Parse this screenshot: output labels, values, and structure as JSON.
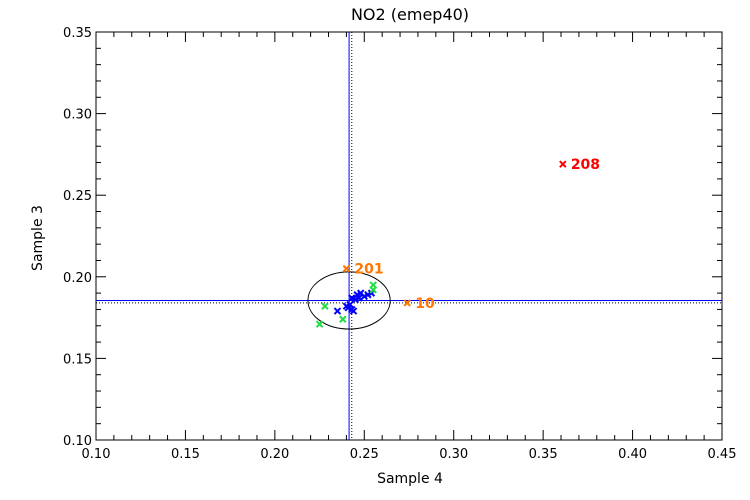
{
  "chart_data": {
    "type": "scatter",
    "title": "NO2 (emep40)",
    "xlabel": "Sample 4",
    "ylabel": "Sample 3",
    "xlim": [
      0.1,
      0.45
    ],
    "ylim": [
      0.1,
      0.35
    ],
    "x_ticks": [
      "0.10",
      "0.15",
      "0.20",
      "0.25",
      "0.30",
      "0.35",
      "0.40",
      "0.45"
    ],
    "y_ticks": [
      "0.10",
      "0.15",
      "0.20",
      "0.25",
      "0.30",
      "0.35"
    ],
    "grid": false,
    "colors": {
      "blue": "#0000ff",
      "green": "#22dd44",
      "orange": "#ff7700",
      "red": "#ff0000",
      "black": "#000000"
    },
    "reference_lines": {
      "vertical_solid_x": 0.2415,
      "vertical_dotted_x": 0.243,
      "horizontal_solid_y": 0.1855,
      "horizontal_dotted_y": 0.184
    },
    "ellipse": {
      "center": [
        0.2415,
        0.1855
      ],
      "radius_x": 0.023,
      "radius_y": 0.0175
    },
    "series": [
      {
        "color": "blue",
        "marker": "x",
        "points": [
          [
            0.243,
            0.187
          ],
          [
            0.246,
            0.189
          ],
          [
            0.248,
            0.19
          ],
          [
            0.25,
            0.188
          ],
          [
            0.245,
            0.186
          ],
          [
            0.242,
            0.183
          ],
          [
            0.24,
            0.182
          ],
          [
            0.241,
            0.181
          ],
          [
            0.243,
            0.18
          ],
          [
            0.244,
            0.179
          ],
          [
            0.235,
            0.179
          ],
          [
            0.252,
            0.189
          ],
          [
            0.254,
            0.19
          ],
          [
            0.247,
            0.187
          ]
        ]
      },
      {
        "color": "green",
        "marker": "x",
        "points": [
          [
            0.255,
            0.195
          ],
          [
            0.255,
            0.192
          ],
          [
            0.228,
            0.182
          ],
          [
            0.238,
            0.174
          ],
          [
            0.225,
            0.171
          ]
        ]
      },
      {
        "color": "orange",
        "marker": "x",
        "points": [
          [
            0.24,
            0.205,
            "201"
          ],
          [
            0.274,
            0.184,
            "10"
          ]
        ]
      },
      {
        "color": "red",
        "marker": "x",
        "points": [
          [
            0.361,
            0.269,
            "208"
          ]
        ]
      }
    ]
  }
}
